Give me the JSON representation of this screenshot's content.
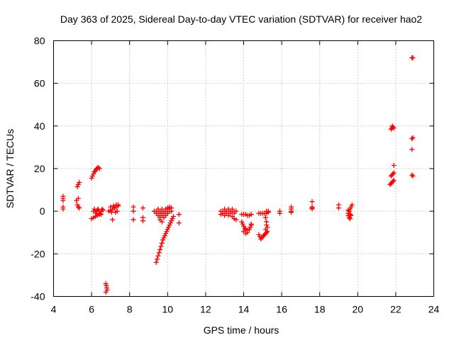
{
  "chart_data": {
    "type": "scatter",
    "title": "Day 363 of 2025, Sidereal Day-to-day VTEC variation (SDTVAR) for receiver hao2",
    "xlabel": "GPS time / hours",
    "ylabel": "SDTVAR / TECUs",
    "xlim": [
      4,
      24
    ],
    "ylim": [
      -40,
      80
    ],
    "xticks": [
      4,
      6,
      8,
      10,
      12,
      14,
      16,
      18,
      20,
      22,
      24
    ],
    "yticks": [
      -40,
      -20,
      0,
      20,
      40,
      60,
      80
    ],
    "grid": true,
    "marker": "plus",
    "series": [
      {
        "name": "hao2",
        "color": "#ff0000",
        "points": [
          [
            4.5,
            7
          ],
          [
            4.5,
            6
          ],
          [
            4.5,
            5
          ],
          [
            4.5,
            2
          ],
          [
            4.5,
            1
          ],
          [
            5.25,
            11.5
          ],
          [
            5.3,
            12.5
          ],
          [
            5.35,
            13.5
          ],
          [
            5.2,
            5
          ],
          [
            5.3,
            6
          ],
          [
            5.25,
            3
          ],
          [
            5.3,
            2
          ],
          [
            5.35,
            1.5
          ],
          [
            6.0,
            15.5
          ],
          [
            6.05,
            16.5
          ],
          [
            6.1,
            17.5
          ],
          [
            6.15,
            18.5
          ],
          [
            6.2,
            19
          ],
          [
            6.25,
            19.8
          ],
          [
            6.3,
            20.2
          ],
          [
            6.35,
            20.5
          ],
          [
            6.42,
            20
          ],
          [
            6.0,
            -3.5
          ],
          [
            6.1,
            -3
          ],
          [
            6.2,
            -2.5
          ],
          [
            6.3,
            -2
          ],
          [
            6.4,
            -1.5
          ],
          [
            6.5,
            -1.5
          ],
          [
            6.1,
            0
          ],
          [
            6.2,
            0
          ],
          [
            6.3,
            0.5
          ],
          [
            6.4,
            0
          ],
          [
            6.5,
            0
          ],
          [
            6.6,
            0.5
          ],
          [
            6.15,
            1
          ],
          [
            6.35,
            1
          ],
          [
            6.55,
            1
          ],
          [
            6.25,
            -1
          ],
          [
            6.45,
            -1
          ],
          [
            6.75,
            -34
          ],
          [
            6.78,
            -35
          ],
          [
            6.8,
            -36
          ],
          [
            6.82,
            -37
          ],
          [
            6.75,
            -38
          ],
          [
            6.9,
            0
          ],
          [
            7.0,
            0.5
          ],
          [
            7.1,
            1
          ],
          [
            7.2,
            1.5
          ],
          [
            7.3,
            2
          ],
          [
            7.4,
            2.5
          ],
          [
            7.0,
            2
          ],
          [
            7.15,
            2.5
          ],
          [
            7.3,
            3
          ],
          [
            7.4,
            3
          ],
          [
            7.05,
            -0.5
          ],
          [
            7.25,
            -0.5
          ],
          [
            7.35,
            0
          ],
          [
            7.1,
            -4
          ],
          [
            8.2,
            2
          ],
          [
            8.2,
            0
          ],
          [
            8.2,
            -4
          ],
          [
            8.7,
            1.5
          ],
          [
            8.7,
            -3
          ],
          [
            8.7,
            -4.5
          ],
          [
            9.3,
            0
          ],
          [
            9.4,
            0
          ],
          [
            9.5,
            0
          ],
          [
            9.6,
            0
          ],
          [
            9.7,
            0
          ],
          [
            9.8,
            0
          ],
          [
            9.9,
            0
          ],
          [
            10.0,
            0
          ],
          [
            10.1,
            0
          ],
          [
            10.2,
            0
          ],
          [
            9.4,
            -1
          ],
          [
            9.6,
            -1
          ],
          [
            9.8,
            -1
          ],
          [
            10.0,
            -1
          ],
          [
            9.5,
            -2
          ],
          [
            9.7,
            -2
          ],
          [
            9.9,
            -2
          ],
          [
            9.6,
            -3
          ],
          [
            9.8,
            -3
          ],
          [
            9.6,
            -4
          ],
          [
            9.7,
            -5
          ],
          [
            9.5,
            1
          ],
          [
            9.7,
            1
          ],
          [
            9.9,
            1
          ],
          [
            10.1,
            1
          ],
          [
            10.2,
            1.5
          ],
          [
            10.0,
            1.5
          ],
          [
            10.1,
            2
          ],
          [
            9.4,
            -24
          ],
          [
            9.45,
            -22.5
          ],
          [
            9.5,
            -21
          ],
          [
            9.55,
            -19.5
          ],
          [
            9.6,
            -18
          ],
          [
            9.65,
            -16.5
          ],
          [
            9.7,
            -15
          ],
          [
            9.75,
            -13.5
          ],
          [
            9.8,
            -12.5
          ],
          [
            9.85,
            -11.5
          ],
          [
            9.9,
            -10.5
          ],
          [
            9.95,
            -9.5
          ],
          [
            10.0,
            -8.5
          ],
          [
            10.05,
            -7.5
          ],
          [
            10.1,
            -6.5
          ],
          [
            10.15,
            -5.5
          ],
          [
            10.2,
            -4.5
          ],
          [
            10.25,
            -3.5
          ],
          [
            10.3,
            -2.5
          ],
          [
            10.6,
            -1.5
          ],
          [
            10.6,
            -5.5
          ],
          [
            12.8,
            0
          ],
          [
            12.9,
            0
          ],
          [
            13.0,
            0
          ],
          [
            13.1,
            0
          ],
          [
            13.2,
            0
          ],
          [
            13.3,
            0
          ],
          [
            13.4,
            0
          ],
          [
            13.5,
            0
          ],
          [
            13.6,
            0
          ],
          [
            12.9,
            -1
          ],
          [
            13.1,
            -1
          ],
          [
            13.3,
            -1
          ],
          [
            13.5,
            -1
          ],
          [
            13.0,
            -2
          ],
          [
            13.2,
            -2
          ],
          [
            13.4,
            -2.5
          ],
          [
            13.5,
            -3.5
          ],
          [
            13.6,
            -4
          ],
          [
            13.0,
            1
          ],
          [
            13.2,
            1
          ],
          [
            13.4,
            1
          ],
          [
            12.8,
            -1.5
          ],
          [
            13.9,
            -1.5
          ],
          [
            14.0,
            -1.5
          ],
          [
            14.1,
            -1.5
          ],
          [
            14.2,
            -2
          ],
          [
            14.3,
            -2
          ],
          [
            14.4,
            -1.5
          ],
          [
            13.9,
            -5
          ],
          [
            13.95,
            -6
          ],
          [
            14.0,
            -7
          ],
          [
            14.05,
            -8
          ],
          [
            14.1,
            -8.5
          ],
          [
            14.2,
            -9
          ],
          [
            14.3,
            -8.5
          ],
          [
            14.35,
            -7.5
          ],
          [
            14.4,
            -6.5
          ],
          [
            14.4,
            -6
          ],
          [
            14.2,
            -10
          ],
          [
            14.1,
            -10.5
          ],
          [
            14.0,
            -9.5
          ],
          [
            14.8,
            -11
          ],
          [
            14.85,
            -12
          ],
          [
            14.9,
            -13
          ],
          [
            14.95,
            -12.5
          ],
          [
            15.0,
            -12
          ],
          [
            15.05,
            -11.5
          ],
          [
            15.1,
            -11
          ],
          [
            15.15,
            -10.5
          ],
          [
            15.2,
            -10
          ],
          [
            15.25,
            -9.5
          ],
          [
            14.8,
            -1
          ],
          [
            14.9,
            -1
          ],
          [
            15.0,
            -1
          ],
          [
            15.1,
            -1
          ],
          [
            15.2,
            -1
          ],
          [
            15.3,
            -0.5
          ],
          [
            15.2,
            0
          ],
          [
            15.3,
            0
          ],
          [
            15.15,
            -3
          ],
          [
            15.2,
            -5
          ],
          [
            15.2,
            -6.5
          ],
          [
            15.25,
            -7.5
          ],
          [
            15.15,
            -8.5
          ],
          [
            15.9,
            0
          ],
          [
            15.9,
            -1
          ],
          [
            16.5,
            2
          ],
          [
            16.5,
            1
          ],
          [
            16.5,
            0
          ],
          [
            16.5,
            -0.5
          ],
          [
            17.6,
            4.5
          ],
          [
            17.6,
            2
          ],
          [
            17.6,
            1.5
          ],
          [
            17.6,
            1
          ],
          [
            19.0,
            3
          ],
          [
            19.0,
            1.5
          ],
          [
            19.5,
            -1
          ],
          [
            19.55,
            0
          ],
          [
            19.6,
            1
          ],
          [
            19.65,
            2
          ],
          [
            19.7,
            3
          ],
          [
            19.5,
            -2
          ],
          [
            19.55,
            -3
          ],
          [
            19.6,
            -3.5
          ],
          [
            19.65,
            -2
          ],
          [
            19.5,
            0.5
          ],
          [
            19.6,
            -1.5
          ],
          [
            21.75,
            38.5
          ],
          [
            21.8,
            39
          ],
          [
            21.85,
            39.5
          ],
          [
            21.9,
            39
          ],
          [
            21.82,
            40
          ],
          [
            21.7,
            12.5
          ],
          [
            21.75,
            13
          ],
          [
            21.8,
            13.5
          ],
          [
            21.85,
            14
          ],
          [
            21.9,
            14.5
          ],
          [
            21.75,
            16.5
          ],
          [
            21.8,
            17
          ],
          [
            21.85,
            17.5
          ],
          [
            21.9,
            18
          ],
          [
            21.9,
            21.5
          ],
          [
            22.85,
            72
          ],
          [
            22.9,
            72
          ],
          [
            22.9,
            34.5
          ],
          [
            22.85,
            34
          ],
          [
            22.85,
            29
          ],
          [
            22.85,
            17
          ],
          [
            22.9,
            16.5
          ]
        ]
      }
    ]
  }
}
